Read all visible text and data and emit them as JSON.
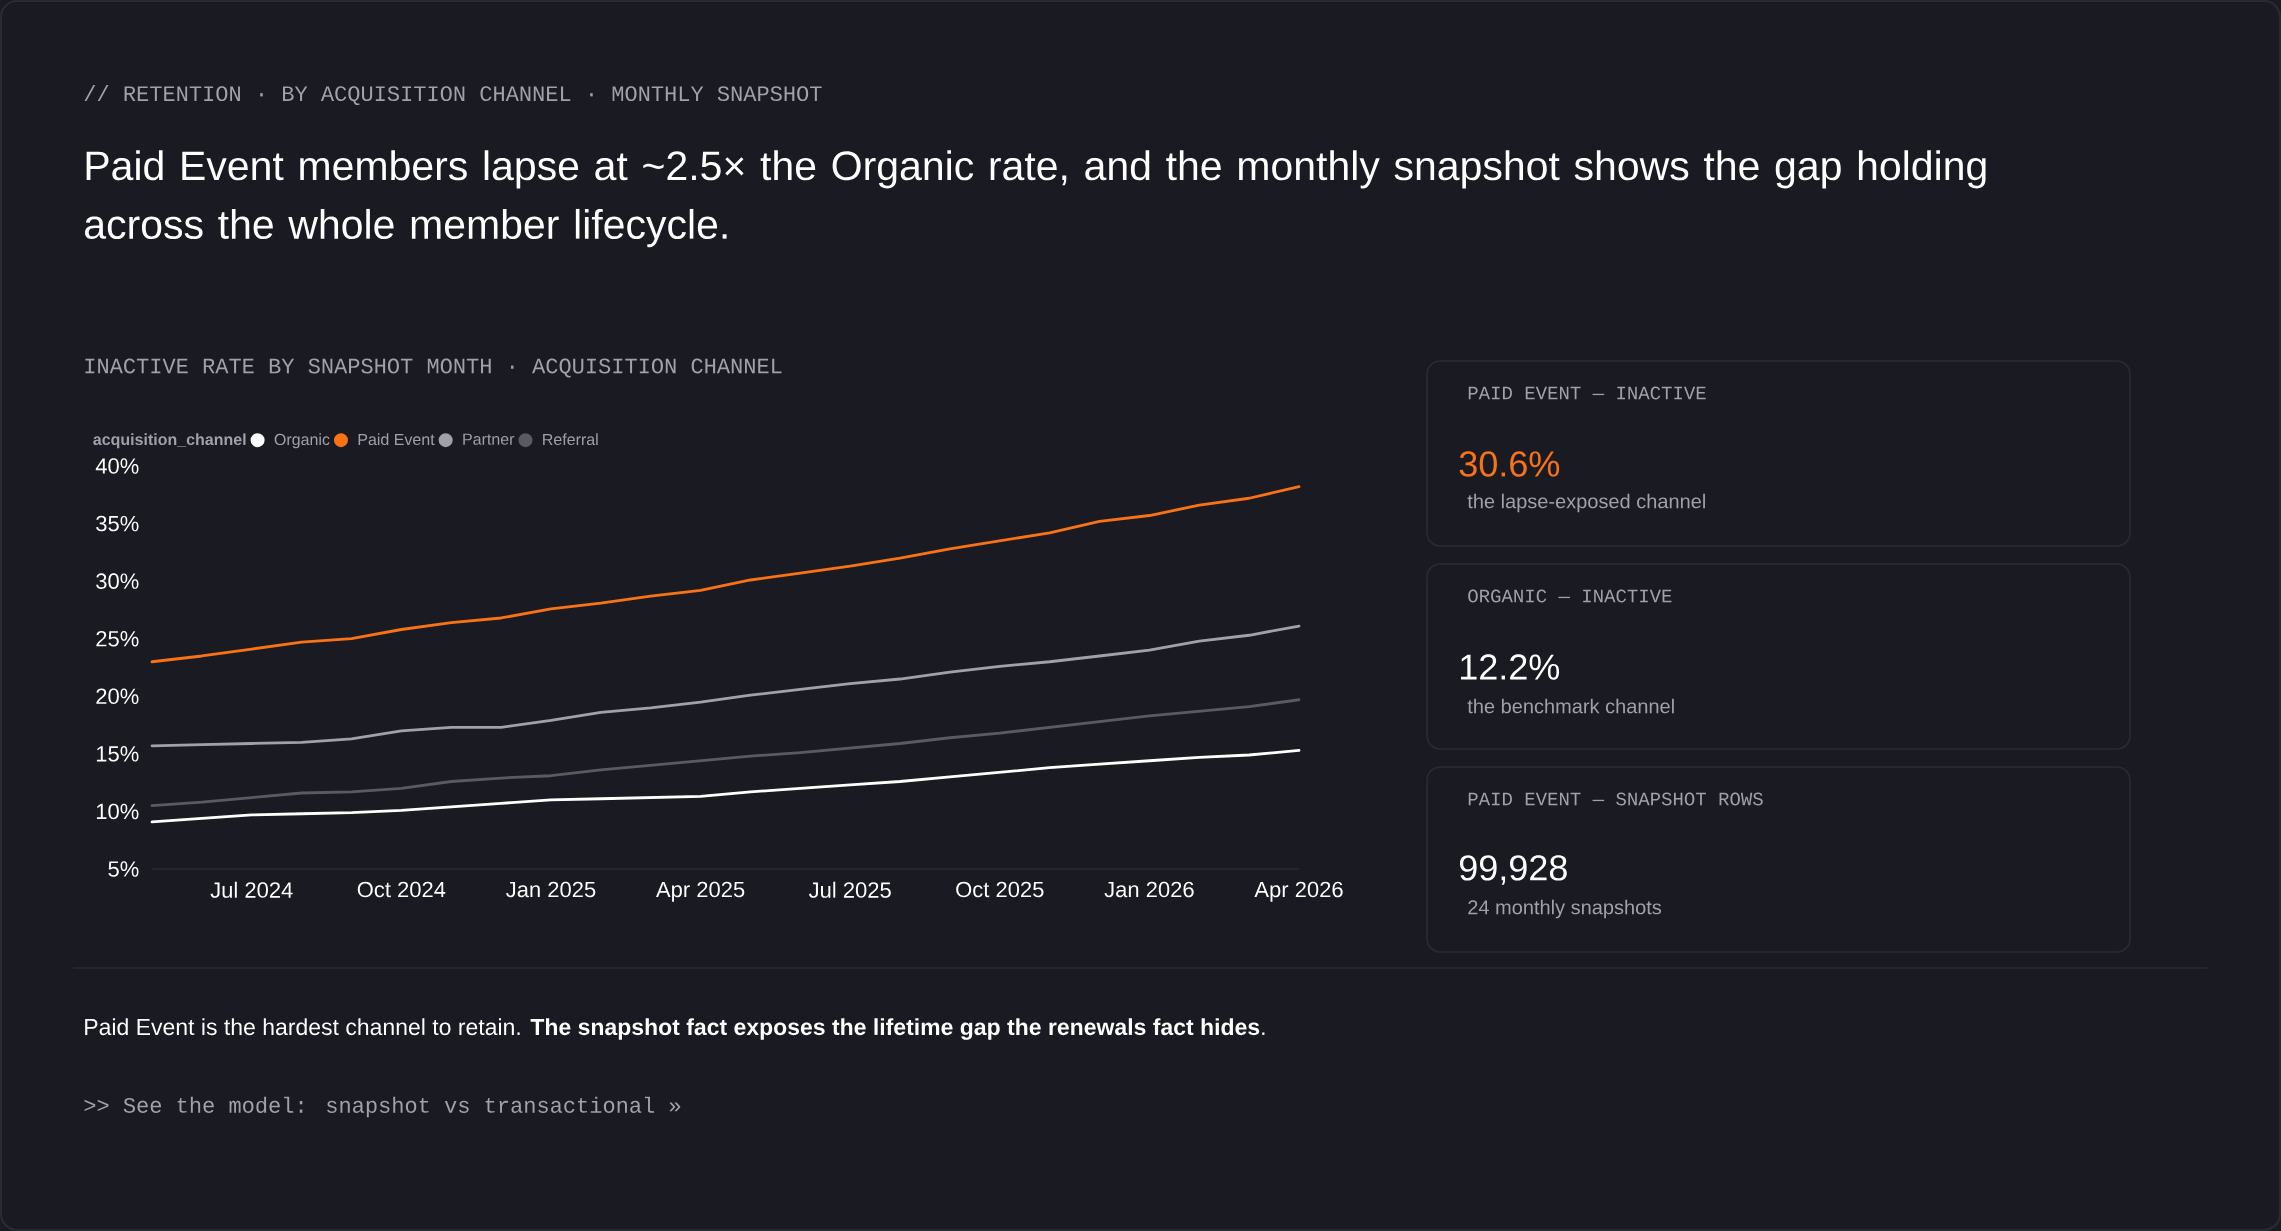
{
  "chart_data": [
    {
      "type": "line",
      "title": "INACTIVE RATE BY SNAPSHOT MONTH · ACQUISITION CHANNEL",
      "legend_title": "acquisition_channel",
      "legend": "top left",
      "annotations": [
        "// RETENTION · BY ACQUISITION CHANNEL · MONTHLY SNAPSHOT",
        "Paid Event members lapse at ~2.5× the Organic rate, and the monthly snapshot shows the gap holding across the whole member lifecycle.",
        "Paid Event is the hardest channel to retain. **The snapshot fact exposes the lifetime gap the renewals fact hides**.",
        ">> See the model: snapshot vs transactional »"
      ],
      "x": [
        "2024-05",
        "2024-06",
        "2024-07",
        "2024-08",
        "2024-09",
        "2024-10",
        "2024-11",
        "2024-12",
        "2025-01",
        "2025-02",
        "2025-03",
        "2025-04",
        "2025-05",
        "2025-06",
        "2025-07",
        "2025-08",
        "2025-09",
        "2025-10",
        "2025-11",
        "2025-12",
        "2026-01",
        "2026-02",
        "2026-03",
        "2026-04"
      ],
      "xlim": [
        "2024-05",
        "2026-04"
      ],
      "xticks": [
        {
          "value": "2024-07",
          "label": "Jul 2024"
        },
        {
          "value": "2024-10",
          "label": "Oct 2024"
        },
        {
          "value": "2025-01",
          "label": "Jan 2025"
        },
        {
          "value": "2025-04",
          "label": "Apr 2025"
        },
        {
          "value": "2025-07",
          "label": "Jul 2025"
        },
        {
          "value": "2025-10",
          "label": "Oct 2025"
        },
        {
          "value": "2026-01",
          "label": "Jan 2026"
        },
        {
          "value": "2026-04",
          "label": "Apr 2026"
        }
      ],
      "ylim": [
        5,
        40
      ],
      "yticks": [
        {
          "value": 5,
          "label": "5%"
        },
        {
          "value": 10,
          "label": "10%"
        },
        {
          "value": 15,
          "label": "15%"
        },
        {
          "value": 20,
          "label": "20%"
        },
        {
          "value": 25,
          "label": "25%"
        },
        {
          "value": 30,
          "label": "30%"
        },
        {
          "value": 35,
          "label": "35%"
        },
        {
          "value": 40,
          "label": "40%"
        }
      ],
      "series": [
        {
          "name": "Organic",
          "color": "#ffffff",
          "values": [
            9.1,
            9.4,
            9.7,
            9.8,
            9.9,
            10.1,
            10.4,
            10.7,
            11.0,
            11.1,
            11.2,
            11.3,
            11.7,
            12.0,
            12.3,
            12.6,
            13.0,
            13.4,
            13.8,
            14.1,
            14.4,
            14.7,
            14.9,
            15.3
          ]
        },
        {
          "name": "Paid Event",
          "color": "#f97316",
          "values": [
            23.0,
            23.5,
            24.1,
            24.7,
            25.0,
            25.8,
            26.4,
            26.8,
            27.6,
            28.1,
            28.7,
            29.2,
            30.1,
            30.7,
            31.3,
            32.0,
            32.8,
            33.5,
            34.2,
            35.2,
            35.7,
            36.6,
            37.2,
            38.2
          ]
        },
        {
          "name": "Partner",
          "color": "#a1a1aa",
          "values": [
            15.7,
            15.8,
            15.9,
            16.0,
            16.3,
            17.0,
            17.3,
            17.3,
            17.9,
            18.6,
            19.0,
            19.5,
            20.1,
            20.6,
            21.1,
            21.5,
            22.1,
            22.6,
            23.0,
            23.5,
            24.0,
            24.8,
            25.3,
            26.1
          ]
        },
        {
          "name": "Referral",
          "color": "#5a5a62",
          "values": [
            10.5,
            10.8,
            11.2,
            11.6,
            11.7,
            12.0,
            12.6,
            12.9,
            13.1,
            13.6,
            14.0,
            14.4,
            14.8,
            15.1,
            15.5,
            15.9,
            16.4,
            16.8,
            17.3,
            17.8,
            18.3,
            18.7,
            19.1,
            19.7
          ]
        }
      ]
    },
    {
      "type": "other",
      "annotations": [
        "PAID EVENT — INACTIVE",
        "30.6%",
        "the lapse-exposed channel",
        "ORGANIC — INACTIVE",
        "12.2%",
        "the benchmark channel",
        "PAID EVENT — SNAPSHOT ROWS",
        "99,928",
        "24 monthly snapshots"
      ]
    }
  ]
}
